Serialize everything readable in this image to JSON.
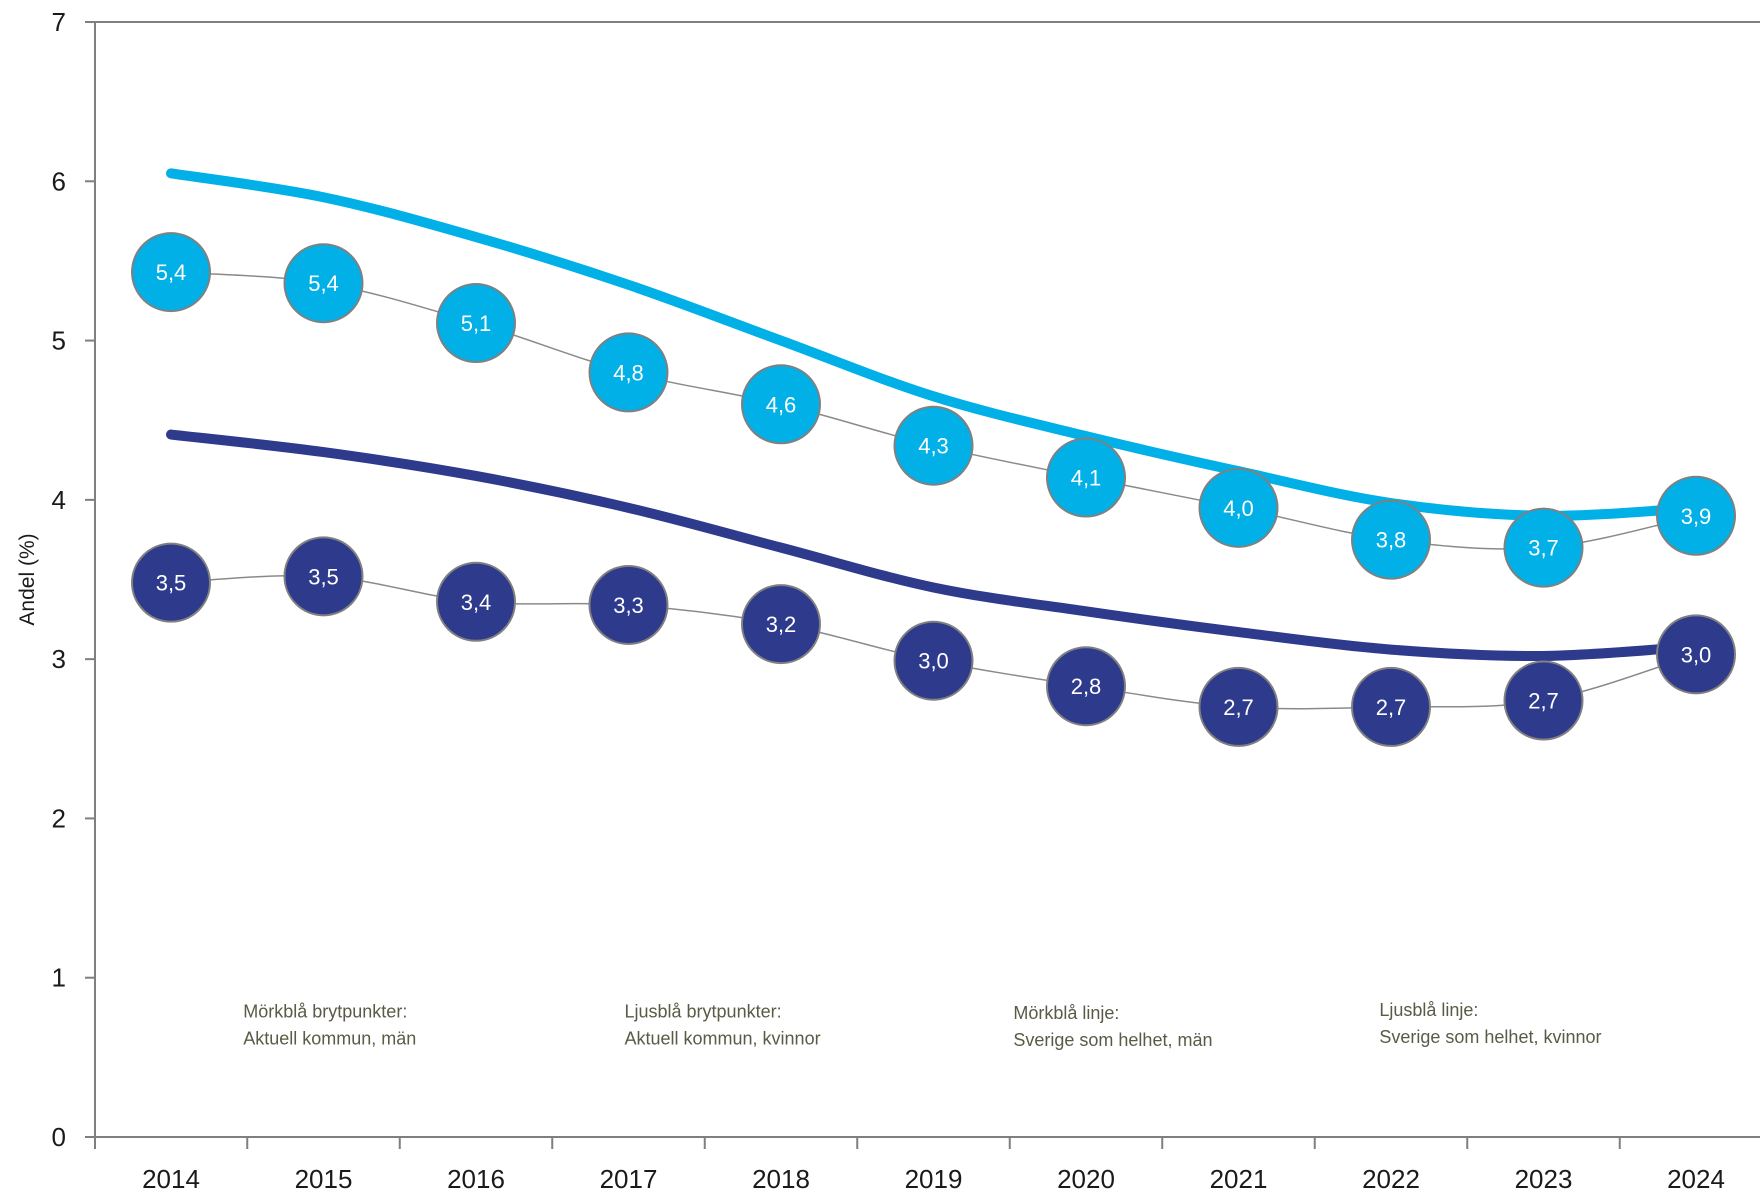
{
  "chart_data": {
    "type": "line",
    "ylabel": "Andel (%)",
    "xlabel": "",
    "ylim": [
      0,
      7
    ],
    "yticks": [
      "0",
      "1",
      "2",
      "3",
      "4",
      "5",
      "6",
      "7"
    ],
    "categories": [
      "2014",
      "2015",
      "2016",
      "2017",
      "2018",
      "2019",
      "2020",
      "2021",
      "2022",
      "2023",
      "2024"
    ],
    "grid": false,
    "colors": {
      "light": "#00B0E6",
      "dark": "#2E3A8C",
      "connector": "#8a8a8a",
      "axis": "#7f7f7f"
    },
    "series": [
      {
        "key": "trend_women",
        "style": "smooth-line",
        "color": "#00B0E6",
        "values": [
          6.05,
          5.9,
          5.65,
          5.35,
          5.0,
          4.65,
          4.4,
          4.18,
          3.98,
          3.9,
          3.95
        ]
      },
      {
        "key": "trend_men",
        "style": "smooth-line",
        "color": "#2E3A8C",
        "values": [
          4.41,
          4.3,
          4.15,
          3.95,
          3.7,
          3.45,
          3.3,
          3.17,
          3.06,
          3.02,
          3.08
        ]
      },
      {
        "key": "points_women",
        "style": "points",
        "color": "#00B0E6",
        "values": [
          5.43,
          5.36,
          5.11,
          4.8,
          4.6,
          4.34,
          4.14,
          3.95,
          3.75,
          3.7,
          3.9
        ],
        "labels": [
          "5,4",
          "5,4",
          "5,1",
          "4,8",
          "4,6",
          "4,3",
          "4,1",
          "4,0",
          "3,8",
          "3,7",
          "3,9"
        ]
      },
      {
        "key": "points_men",
        "style": "points",
        "color": "#2E3A8C",
        "values": [
          3.48,
          3.52,
          3.36,
          3.34,
          3.22,
          2.99,
          2.83,
          2.7,
          2.7,
          2.74,
          3.03
        ],
        "labels": [
          "3,5",
          "3,5",
          "3,4",
          "3,3",
          "3,2",
          "3,0",
          "2,8",
          "2,7",
          "2,7",
          "2,7",
          "3,0"
        ]
      }
    ],
    "annotations": [
      {
        "line1": "Mörkblå brytpunkter:",
        "line2": "Aktuell kommun, män",
        "x_index": 0.5,
        "y": 0.75
      },
      {
        "line1": "Ljusblå brytpunkter:",
        "line2": "Aktuell kommun, kvinnor",
        "x_index": 3.0,
        "y": 0.75
      },
      {
        "line1": "Mörkblå linje:",
        "line2": "Sverige som helhet, män",
        "x_index": 5.55,
        "y": 0.74
      },
      {
        "line1": "Ljusblå linje:",
        "line2": "Sverige som helhet, kvinnor",
        "x_index": 7.95,
        "y": 0.76
      }
    ]
  }
}
